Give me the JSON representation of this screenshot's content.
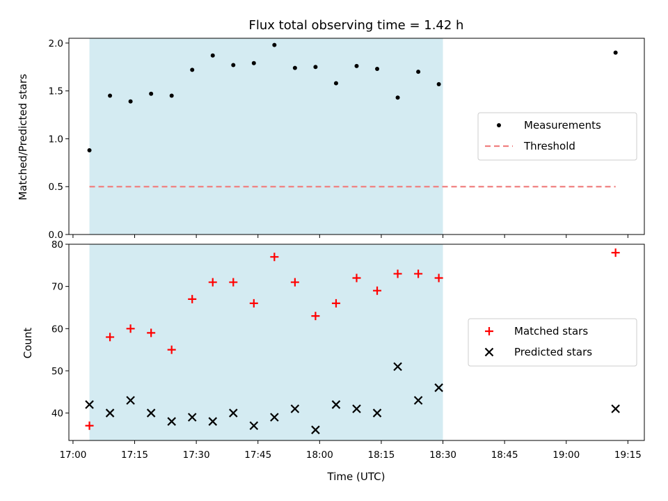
{
  "figure": {
    "title": "Flux total observing time = 1.42 h"
  },
  "chart_data": [
    {
      "type": "scatter",
      "panel": "top",
      "ylabel": "Matched/Predicted stars",
      "ylim": [
        0.0,
        2.05
      ],
      "yticks": [
        0.0,
        0.5,
        1.0,
        1.5,
        2.0
      ],
      "ytick_labels": [
        "0.0",
        "0.5",
        "1.0",
        "1.5",
        "2.0"
      ],
      "legend_placement": "center-right",
      "shaded_span": [
        "17:04",
        "18:30"
      ],
      "shaded_color": "#d4ebf2",
      "series": [
        {
          "name": "Measurements",
          "marker": "dot",
          "color": "#000000",
          "x": [
            "17:04",
            "17:09",
            "17:14",
            "17:19",
            "17:24",
            "17:29",
            "17:34",
            "17:39",
            "17:44",
            "17:49",
            "17:54",
            "17:59",
            "18:04",
            "18:09",
            "18:14",
            "18:19",
            "18:24",
            "18:29",
            "19:12"
          ],
          "y": [
            0.88,
            1.45,
            1.39,
            1.47,
            1.45,
            1.72,
            1.87,
            1.77,
            1.79,
            1.98,
            1.74,
            1.75,
            1.58,
            1.76,
            1.73,
            1.43,
            1.7,
            1.57,
            1.9
          ]
        },
        {
          "name": "Threshold",
          "line": "dashed",
          "color": "#f08080",
          "x": [
            "17:04",
            "19:12"
          ],
          "y": [
            0.5,
            0.5
          ]
        }
      ]
    },
    {
      "type": "scatter",
      "panel": "bottom",
      "ylabel": "Count",
      "xlabel": "Time (UTC)",
      "ylim": [
        33.5,
        80
      ],
      "yticks": [
        40,
        50,
        60,
        70,
        80
      ],
      "ytick_labels": [
        "40",
        "50",
        "60",
        "70",
        "80"
      ],
      "xticks": [
        "17:00",
        "17:15",
        "17:30",
        "17:45",
        "18:00",
        "18:15",
        "18:30",
        "18:45",
        "19:00",
        "19:15"
      ],
      "xlim": [
        "16:59",
        "19:19"
      ],
      "legend_placement": "center-right",
      "shaded_span": [
        "17:04",
        "18:30"
      ],
      "shaded_color": "#d4ebf2",
      "series": [
        {
          "name": "Matched stars",
          "marker": "plus",
          "color": "#ff0000",
          "x": [
            "17:04",
            "17:09",
            "17:14",
            "17:19",
            "17:24",
            "17:29",
            "17:34",
            "17:39",
            "17:44",
            "17:49",
            "17:54",
            "17:59",
            "18:04",
            "18:09",
            "18:14",
            "18:19",
            "18:24",
            "18:29",
            "19:12"
          ],
          "y": [
            37,
            58,
            60,
            59,
            55,
            67,
            71,
            71,
            66,
            77,
            71,
            63,
            66,
            72,
            69,
            73,
            73,
            72,
            78
          ]
        },
        {
          "name": "Predicted stars",
          "marker": "x",
          "color": "#000000",
          "x": [
            "17:04",
            "17:09",
            "17:14",
            "17:19",
            "17:24",
            "17:29",
            "17:34",
            "17:39",
            "17:44",
            "17:49",
            "17:54",
            "17:59",
            "18:04",
            "18:09",
            "18:14",
            "18:19",
            "18:24",
            "18:29",
            "19:12"
          ],
          "y": [
            42,
            40,
            43,
            40,
            38,
            39,
            38,
            40,
            37,
            39,
            41,
            36,
            42,
            41,
            40,
            51,
            43,
            46,
            41
          ]
        }
      ]
    }
  ]
}
